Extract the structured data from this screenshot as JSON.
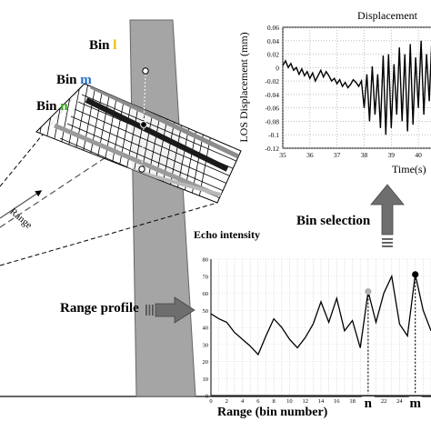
{
  "bins": {
    "prefix": "Bin",
    "l_letter": "l",
    "m_letter": "m",
    "n_letter": "n",
    "l_color": "#e6c200",
    "m_color": "#1f6fc8",
    "n_color": "#3aa61e"
  },
  "range_arrow_label": "Range",
  "range_profile_label": "Range profile",
  "bin_selection_label": "Bin selection",
  "displacement_chart": {
    "title": "Displacement",
    "ylabel": "LOS Displacement (mm)",
    "xlabel": "Time(s)",
    "y_ticks": [
      "0.06",
      "0.04",
      "0.02",
      "0",
      "-0.02",
      "-0.04",
      "-0.06",
      "-0.08",
      "-0.1",
      "-0.12"
    ],
    "x_ticks": [
      "35",
      "36",
      "37",
      "38",
      "39",
      "40"
    ]
  },
  "echo_chart": {
    "title": "Echo intensity",
    "xlabel": "Range (bin number)",
    "y_ticks": [
      "80",
      "70",
      "60",
      "50",
      "40",
      "30",
      "20",
      "10",
      "0"
    ],
    "x_ticks": [
      "0",
      "2",
      "4",
      "6",
      "8",
      "10",
      "12",
      "14",
      "16",
      "18",
      "20",
      "22",
      "24",
      "26"
    ],
    "marker_n_label": "n",
    "marker_m_label": "m",
    "marker_n_color": "#b0b0b0",
    "marker_m_color": "#000000"
  },
  "chart_data": [
    {
      "type": "line",
      "title": "Displacement",
      "xlabel": "Time(s)",
      "ylabel": "LOS Displacement (mm)",
      "xlim": [
        35,
        40.7
      ],
      "ylim": [
        -0.12,
        0.06
      ],
      "grid": true,
      "x": [
        35.0,
        35.1,
        35.2,
        35.3,
        35.4,
        35.5,
        35.6,
        35.7,
        35.8,
        35.9,
        36.0,
        36.1,
        36.2,
        36.3,
        36.4,
        36.5,
        36.6,
        36.7,
        36.8,
        36.9,
        37.0,
        37.1,
        37.2,
        37.3,
        37.4,
        37.5,
        37.6,
        37.7,
        37.8,
        37.9,
        38.0,
        38.1,
        38.2,
        38.3,
        38.4,
        38.5,
        38.6,
        38.7,
        38.8,
        38.9,
        39.0,
        39.1,
        39.2,
        39.3,
        39.4,
        39.5,
        39.6,
        39.7,
        39.8,
        39.9,
        40.0,
        40.1,
        40.2,
        40.3,
        40.4,
        40.5,
        40.6,
        40.7
      ],
      "y": [
        0.003,
        0.01,
        0.0,
        0.006,
        -0.004,
        0.0,
        -0.01,
        -0.002,
        -0.012,
        -0.006,
        -0.016,
        -0.008,
        -0.02,
        -0.012,
        -0.004,
        -0.014,
        -0.006,
        -0.012,
        -0.02,
        -0.016,
        -0.024,
        -0.018,
        -0.028,
        -0.022,
        -0.03,
        -0.025,
        -0.018,
        -0.022,
        -0.028,
        -0.02,
        -0.06,
        -0.01,
        -0.08,
        0.002,
        -0.07,
        -0.01,
        -0.09,
        0.018,
        -0.1,
        0.02,
        -0.09,
        0.005,
        -0.07,
        0.03,
        -0.08,
        0.02,
        -0.095,
        0.035,
        -0.085,
        0.015,
        -0.06,
        0.04,
        -0.07,
        0.02,
        -0.05,
        0.045,
        -0.06,
        0.05
      ]
    },
    {
      "type": "line",
      "title": "Echo intensity",
      "xlabel": "Range (bin number)",
      "xlim": [
        0,
        28
      ],
      "ylim": [
        0,
        80
      ],
      "grid": true,
      "x": [
        0,
        1,
        2,
        3,
        4,
        5,
        6,
        7,
        8,
        9,
        10,
        11,
        12,
        13,
        14,
        15,
        16,
        17,
        18,
        19,
        20,
        21,
        22,
        23,
        24,
        25,
        26,
        27,
        28
      ],
      "y": [
        48,
        45,
        43,
        37,
        33,
        29,
        24,
        35,
        45,
        40,
        33,
        28,
        34,
        42,
        55,
        43,
        57,
        38,
        44,
        28,
        61,
        43,
        60,
        70,
        42,
        35,
        71,
        50,
        38
      ],
      "markers": [
        {
          "label": "n",
          "x": 20,
          "y": 61
        },
        {
          "label": "m",
          "x": 26,
          "y": 71
        }
      ]
    }
  ]
}
